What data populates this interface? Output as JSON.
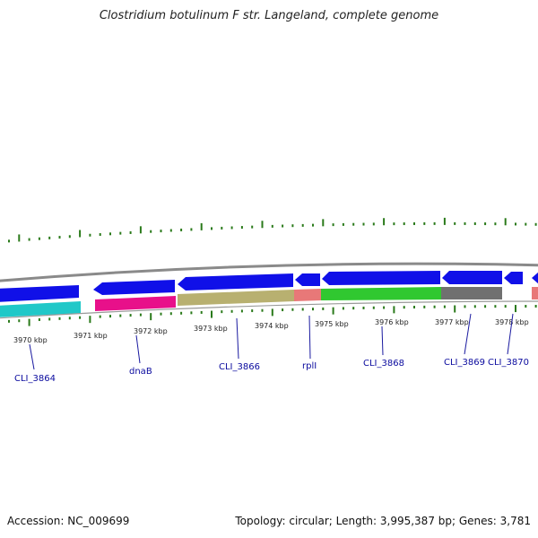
{
  "title": "Clostridium botulinum F str. Langeland, complete genome",
  "footer": {
    "accession": "Accession: NC_009699",
    "summary": "Topology: circular; Length: 3,995,387 bp; Genes: 3,781"
  },
  "colors": {
    "backbone": "#8a8a8a",
    "cds_blue": "#1010e8",
    "tick_green": "#2a7a1a",
    "label_blue": "#0a0a9e"
  },
  "kbp_ticks": [
    "3970 kbp",
    "3971 kbp",
    "3972 kbp",
    "3973 kbp",
    "3974 kbp",
    "3975 kbp",
    "3976 kbp",
    "3977 kbp",
    "3978 kbp"
  ],
  "gene_labels": [
    "CLI_3864",
    "dnaB",
    "CLI_3866",
    "rplI",
    "CLI_3868",
    "CLI_3869",
    "CLI_3870"
  ],
  "color_bands": [
    {
      "name": "cyan",
      "color": "#20c8c8"
    },
    {
      "name": "magenta",
      "color": "#e8108a"
    },
    {
      "name": "khaki",
      "color": "#b8b070"
    },
    {
      "name": "salmon",
      "color": "#e87878"
    },
    {
      "name": "green",
      "color": "#30c830"
    },
    {
      "name": "gray",
      "color": "#707070"
    },
    {
      "name": "salmon2",
      "color": "#e87878"
    }
  ]
}
